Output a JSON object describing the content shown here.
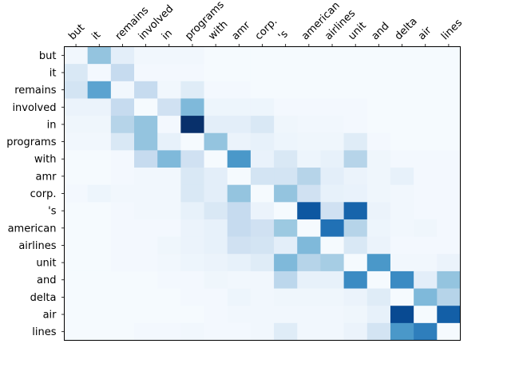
{
  "chart_data": {
    "type": "heatmap",
    "title": "",
    "xlabel": "",
    "ylabel": "",
    "colormap": "Blues",
    "value_range": [
      0,
      1
    ],
    "grid": false,
    "x_tokens": [
      "but",
      "it",
      "remains",
      "involved",
      "in",
      "programs",
      "with",
      "amr",
      "corp.",
      "'s",
      "american",
      "airlines",
      "unit",
      "and",
      "delta",
      "air",
      "lines"
    ],
    "y_tokens": [
      "but",
      "it",
      "remains",
      "involved",
      "in",
      "programs",
      "with",
      "amr",
      "corp.",
      "'s",
      "american",
      "airlines",
      "unit",
      "and",
      "delta",
      "air",
      "lines"
    ],
    "matrix": [
      [
        0.03,
        0.4,
        0.1,
        0.03,
        0.03,
        0.03,
        0.01,
        0.01,
        0.01,
        0.01,
        0.01,
        0.01,
        0.01,
        0.01,
        0.01,
        0.01,
        0.01
      ],
      [
        0.15,
        0.02,
        0.25,
        0.02,
        0.02,
        0.02,
        0.01,
        0.01,
        0.01,
        0.01,
        0.01,
        0.01,
        0.01,
        0.01,
        0.01,
        0.01,
        0.01
      ],
      [
        0.18,
        0.55,
        0.03,
        0.25,
        0.03,
        0.12,
        0.02,
        0.02,
        0.01,
        0.01,
        0.01,
        0.01,
        0.01,
        0.01,
        0.01,
        0.01,
        0.01
      ],
      [
        0.06,
        0.06,
        0.25,
        0.01,
        0.2,
        0.45,
        0.05,
        0.05,
        0.05,
        0.02,
        0.02,
        0.02,
        0.02,
        0.01,
        0.01,
        0.01,
        0.01
      ],
      [
        0.04,
        0.04,
        0.3,
        0.4,
        0.02,
        1.0,
        0.1,
        0.1,
        0.15,
        0.04,
        0.03,
        0.03,
        0.02,
        0.01,
        0.01,
        0.01,
        0.01
      ],
      [
        0.03,
        0.03,
        0.15,
        0.4,
        0.08,
        0.01,
        0.4,
        0.06,
        0.08,
        0.05,
        0.04,
        0.04,
        0.12,
        0.02,
        0.01,
        0.01,
        0.01
      ],
      [
        0.01,
        0.01,
        0.02,
        0.25,
        0.45,
        0.2,
        0.01,
        0.6,
        0.07,
        0.15,
        0.05,
        0.08,
        0.3,
        0.04,
        0.02,
        0.02,
        0.02
      ],
      [
        0.01,
        0.01,
        0.02,
        0.03,
        0.03,
        0.15,
        0.1,
        0.01,
        0.18,
        0.18,
        0.3,
        0.1,
        0.06,
        0.04,
        0.08,
        0.02,
        0.02
      ],
      [
        0.02,
        0.05,
        0.03,
        0.03,
        0.03,
        0.15,
        0.1,
        0.4,
        0.01,
        0.4,
        0.2,
        0.08,
        0.07,
        0.04,
        0.03,
        0.02,
        0.02
      ],
      [
        0.01,
        0.01,
        0.02,
        0.03,
        0.03,
        0.08,
        0.15,
        0.25,
        0.06,
        0.01,
        0.85,
        0.2,
        0.8,
        0.06,
        0.03,
        0.02,
        0.02
      ],
      [
        0.01,
        0.01,
        0.02,
        0.02,
        0.02,
        0.06,
        0.08,
        0.25,
        0.2,
        0.38,
        0.01,
        0.75,
        0.3,
        0.05,
        0.03,
        0.04,
        0.02
      ],
      [
        0.01,
        0.01,
        0.02,
        0.02,
        0.04,
        0.06,
        0.08,
        0.2,
        0.18,
        0.1,
        0.45,
        0.01,
        0.15,
        0.06,
        0.02,
        0.02,
        0.02
      ],
      [
        0.01,
        0.01,
        0.02,
        0.02,
        0.03,
        0.05,
        0.06,
        0.08,
        0.12,
        0.45,
        0.3,
        0.35,
        0.01,
        0.6,
        0.03,
        0.03,
        0.06
      ],
      [
        0.01,
        0.01,
        0.01,
        0.01,
        0.02,
        0.02,
        0.04,
        0.03,
        0.03,
        0.28,
        0.08,
        0.08,
        0.65,
        0.01,
        0.65,
        0.1,
        0.4
      ],
      [
        0.01,
        0.01,
        0.01,
        0.01,
        0.01,
        0.02,
        0.02,
        0.05,
        0.03,
        0.04,
        0.04,
        0.04,
        0.06,
        0.12,
        0.01,
        0.45,
        0.3
      ],
      [
        0.01,
        0.01,
        0.01,
        0.01,
        0.01,
        0.01,
        0.02,
        0.03,
        0.03,
        0.03,
        0.03,
        0.03,
        0.04,
        0.08,
        0.9,
        0.01,
        0.82
      ],
      [
        0.01,
        0.01,
        0.01,
        0.02,
        0.02,
        0.03,
        0.02,
        0.02,
        0.03,
        0.12,
        0.03,
        0.03,
        0.06,
        0.18,
        0.6,
        0.7,
        0.01
      ]
    ]
  }
}
